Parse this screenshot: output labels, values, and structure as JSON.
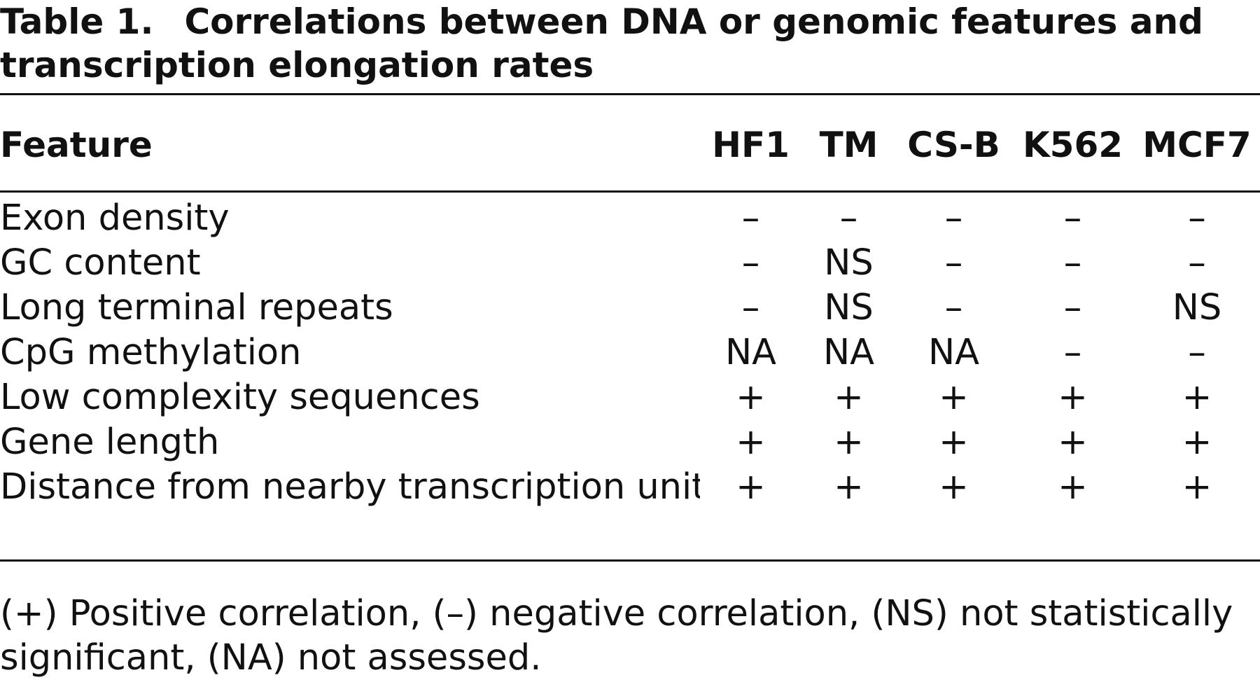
{
  "caption": {
    "label": "Table 1.",
    "title": "Correlations between DNA or genomic features and",
    "title_line2": "transcription elongation rates"
  },
  "table": {
    "columns": [
      "Feature",
      "HF1",
      "TM",
      "CS-B",
      "K562",
      "MCF7"
    ],
    "rows": [
      {
        "feature": "Exon density",
        "values": [
          "–",
          "–",
          "–",
          "–",
          "–"
        ]
      },
      {
        "feature": "GC content",
        "values": [
          "–",
          "NS",
          "–",
          "–",
          "–"
        ]
      },
      {
        "feature": "Long terminal repeats",
        "values": [
          "–",
          "NS",
          "–",
          "–",
          "NS"
        ]
      },
      {
        "feature": "CpG methylation",
        "values": [
          "NA",
          "NA",
          "NA",
          "–",
          "–"
        ]
      },
      {
        "feature": "Low complexity sequences",
        "values": [
          "+",
          "+",
          "+",
          "+",
          "+"
        ]
      },
      {
        "feature": "Gene length",
        "values": [
          "+",
          "+",
          "+",
          "+",
          "+"
        ]
      },
      {
        "feature": "Distance from nearby transcription unit",
        "values": [
          "+",
          "+",
          "+",
          "+",
          "+"
        ]
      }
    ]
  },
  "footnote": {
    "line1": "(+) Positive correlation, (–) negative correlation, (NS) not statistically",
    "line2": "significant, (NA) not assessed."
  }
}
